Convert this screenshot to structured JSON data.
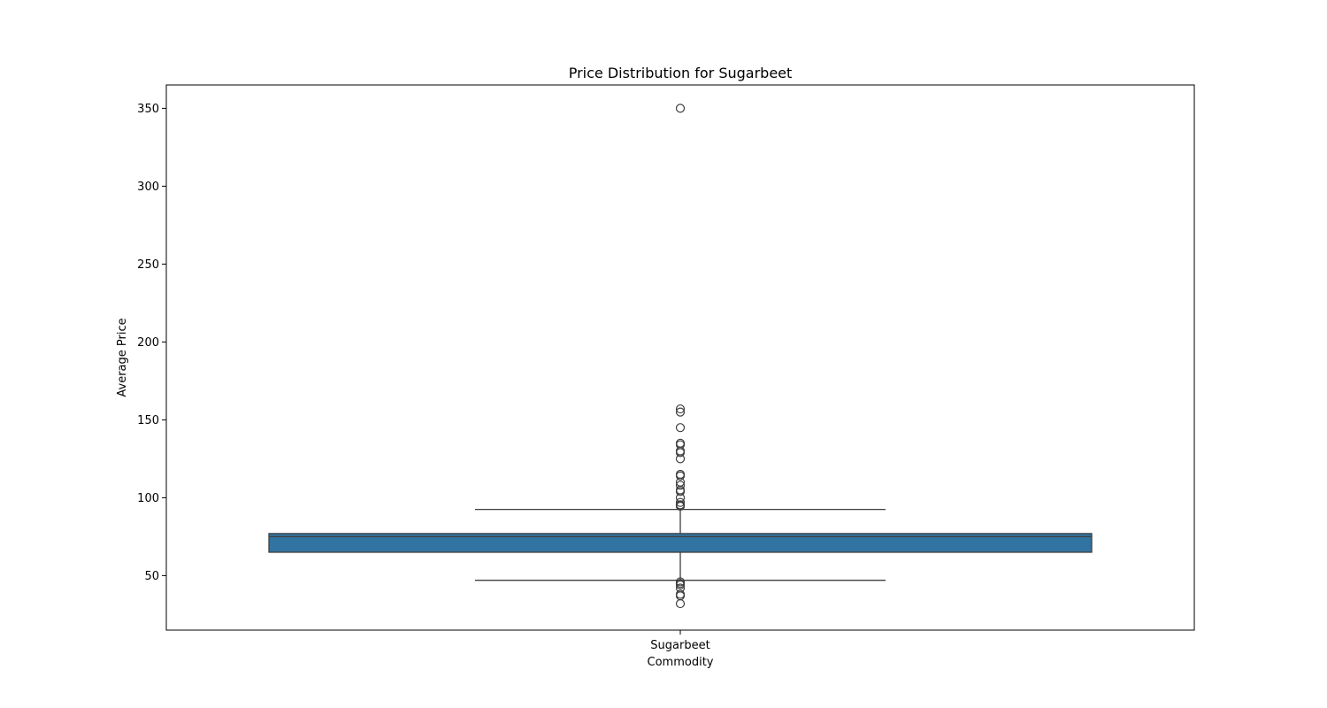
{
  "chart_data": {
    "type": "box",
    "title": "Price Distribution for Sugarbeet",
    "xlabel": "Commodity",
    "ylabel": "Average Price",
    "categories": [
      "Sugarbeet"
    ],
    "ylim": [
      15,
      365
    ],
    "yticks": [
      50,
      100,
      150,
      200,
      250,
      300,
      350
    ],
    "box": {
      "category": "Sugarbeet",
      "whisker_low": 47,
      "q1": 65,
      "median": 75,
      "q3": 77,
      "whisker_high": 92.5
    },
    "outliers": [
      350,
      157,
      155,
      145,
      135,
      134,
      130,
      129,
      125,
      115,
      114,
      110,
      108,
      105,
      104,
      100,
      97,
      95.5,
      95,
      94.5,
      46,
      45,
      44,
      42,
      38,
      37,
      32
    ],
    "colors": {
      "box_fill": "#3274a1",
      "line": "#3f3f3f"
    },
    "grid": false
  }
}
